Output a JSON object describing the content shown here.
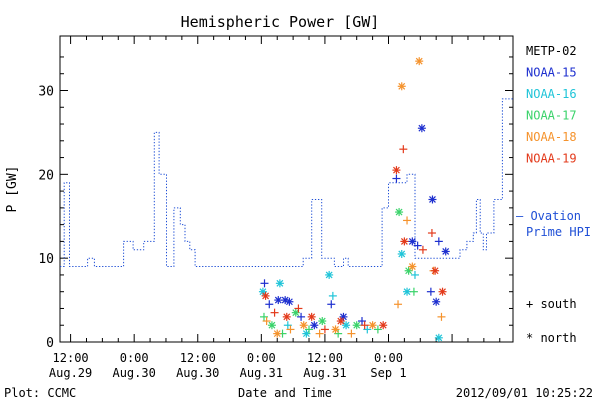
{
  "chart_data": {
    "type": "line",
    "title": "Hemispheric Power [GW]",
    "xlabel": "Date and Time",
    "ylabel": "P [GW]",
    "x_unit": "hours since 2012-08-29 00:00 UT",
    "xlim": [
      10,
      95.5
    ],
    "ylim": [
      0,
      36.5
    ],
    "yticks": [
      0,
      10,
      20,
      30
    ],
    "xticks": [
      {
        "t": 12,
        "line1": "12:00",
        "line2": "Aug.29"
      },
      {
        "t": 24,
        "line1": "0:00",
        "line2": "Aug.30"
      },
      {
        "t": 36,
        "line1": "12:00",
        "line2": "Aug.30"
      },
      {
        "t": 48,
        "line1": "0:00",
        "line2": "Aug.31"
      },
      {
        "t": 60,
        "line1": "12:00",
        "line2": "Aug.31"
      },
      {
        "t": 72,
        "line1": "0:00",
        "line2": "Sep 1"
      }
    ],
    "footer_left": "Plot: CCMC",
    "footer_right": "2012/09/01 10:25:22",
    "ovation": {
      "name_line1": "— Ovation",
      "name_line2": "Prime HPI",
      "color": "#1f4fd6",
      "x": [
        10,
        10.8,
        10.8,
        11.8,
        11.8,
        15.2,
        15.2,
        16.5,
        16.5,
        22,
        22,
        23.8,
        23.8,
        25.8,
        25.8,
        27.8,
        27.8,
        28.7,
        28.7,
        30.1,
        30.1,
        31.5,
        31.5,
        32.7,
        32.7,
        33.6,
        33.6,
        34.5,
        34.5,
        35.5,
        35.5,
        36.9,
        36.9,
        38.1,
        38.1,
        55.9,
        55.9,
        57.5,
        57.5,
        59.4,
        59.4,
        61.8,
        61.8,
        63.5,
        63.5,
        64.4,
        64.4,
        70.8,
        70.8,
        72,
        72,
        75.5,
        75.5,
        77,
        77,
        85.5,
        85.5,
        86.8,
        86.8,
        88,
        88,
        88.6,
        88.6,
        89.3,
        89.3,
        89.9,
        89.9,
        90.5,
        90.5,
        91.9,
        91.9,
        93.5,
        93.5,
        94.8,
        94.8,
        95.5
      ],
      "y": [
        9,
        9,
        19,
        19,
        9,
        9,
        10,
        10,
        9,
        9,
        12,
        12,
        11,
        11,
        12,
        12,
        25,
        25,
        20,
        20,
        9,
        9,
        16,
        16,
        14,
        14,
        12,
        12,
        11,
        11,
        9,
        9,
        9,
        9,
        9,
        9,
        10,
        10,
        17,
        17,
        10,
        10,
        9,
        9,
        10,
        10,
        9,
        9,
        16,
        16,
        19,
        19,
        20,
        20,
        10,
        10,
        11,
        11,
        12,
        12,
        13,
        13,
        17,
        17,
        13,
        13,
        11,
        11,
        13,
        13,
        17,
        17,
        29,
        29,
        29,
        29
      ]
    },
    "satellites": [
      {
        "name": "METP-02",
        "color": "#000000"
      },
      {
        "name": "NOAA-15",
        "color": "#1d2fcf"
      },
      {
        "name": "NOAA-16",
        "color": "#1fc4d8"
      },
      {
        "name": "NOAA-17",
        "color": "#3ad36a"
      },
      {
        "name": "NOAA-18",
        "color": "#f5932d"
      },
      {
        "name": "NOAA-19",
        "color": "#e33a1b"
      }
    ],
    "symbol_legend": {
      "south_label": "+ south",
      "north_label": "* north"
    },
    "points": [
      {
        "s": "NOAA-15",
        "t": 48.6,
        "p": 7,
        "h": "S"
      },
      {
        "s": "NOAA-15",
        "t": 49.5,
        "p": 4.5,
        "h": "S"
      },
      {
        "s": "NOAA-15",
        "t": 51.2,
        "p": 5,
        "h": "N"
      },
      {
        "s": "NOAA-15",
        "t": 52.5,
        "p": 5,
        "h": "N"
      },
      {
        "s": "NOAA-15",
        "t": 53.3,
        "p": 4.8,
        "h": "N"
      },
      {
        "s": "NOAA-15",
        "t": 55.5,
        "p": 3,
        "h": "S"
      },
      {
        "s": "NOAA-15",
        "t": 58,
        "p": 2,
        "h": "N"
      },
      {
        "s": "NOAA-15",
        "t": 61.2,
        "p": 4.5,
        "h": "S"
      },
      {
        "s": "NOAA-15",
        "t": 63.5,
        "p": 3,
        "h": "N"
      },
      {
        "s": "NOAA-15",
        "t": 67,
        "p": 2.5,
        "h": "S"
      },
      {
        "s": "NOAA-15",
        "t": 76.5,
        "p": 12,
        "h": "N"
      },
      {
        "s": "NOAA-15",
        "t": 77.5,
        "p": 11.5,
        "h": "S"
      },
      {
        "s": "NOAA-15",
        "t": 78.3,
        "p": 25.5,
        "h": "N"
      },
      {
        "s": "NOAA-15",
        "t": 80.3,
        "p": 17,
        "h": "N"
      },
      {
        "s": "NOAA-15",
        "t": 80,
        "p": 6,
        "h": "S"
      },
      {
        "s": "NOAA-15",
        "t": 81,
        "p": 4.8,
        "h": "N"
      },
      {
        "s": "NOAA-15",
        "t": 81.5,
        "p": 12,
        "h": "S"
      },
      {
        "s": "NOAA-15",
        "t": 82.8,
        "p": 10.8,
        "h": "N"
      },
      {
        "s": "NOAA-15",
        "t": 73.5,
        "p": 19.5,
        "h": "S"
      },
      {
        "s": "NOAA-16",
        "t": 48.3,
        "p": 6,
        "h": "N"
      },
      {
        "s": "NOAA-16",
        "t": 51.5,
        "p": 7,
        "h": "N"
      },
      {
        "s": "NOAA-16",
        "t": 53,
        "p": 2,
        "h": "S"
      },
      {
        "s": "NOAA-16",
        "t": 56.5,
        "p": 1,
        "h": "N"
      },
      {
        "s": "NOAA-16",
        "t": 60.8,
        "p": 8,
        "h": "N"
      },
      {
        "s": "NOAA-16",
        "t": 61.5,
        "p": 5.5,
        "h": "S"
      },
      {
        "s": "NOAA-16",
        "t": 64,
        "p": 2,
        "h": "N"
      },
      {
        "s": "NOAA-16",
        "t": 68,
        "p": 1.5,
        "h": "S"
      },
      {
        "s": "NOAA-16",
        "t": 74.5,
        "p": 10.5,
        "h": "N"
      },
      {
        "s": "NOAA-16",
        "t": 75.5,
        "p": 6,
        "h": "N"
      },
      {
        "s": "NOAA-16",
        "t": 77,
        "p": 8,
        "h": "S"
      },
      {
        "s": "NOAA-16",
        "t": 81.5,
        "p": 0.5,
        "h": "N"
      },
      {
        "s": "NOAA-17",
        "t": 48.5,
        "p": 3,
        "h": "S"
      },
      {
        "s": "NOAA-17",
        "t": 50,
        "p": 2,
        "h": "N"
      },
      {
        "s": "NOAA-17",
        "t": 52,
        "p": 1,
        "h": "S"
      },
      {
        "s": "NOAA-17",
        "t": 54.5,
        "p": 3.5,
        "h": "N"
      },
      {
        "s": "NOAA-17",
        "t": 57,
        "p": 1.5,
        "h": "S"
      },
      {
        "s": "NOAA-17",
        "t": 59.5,
        "p": 2.5,
        "h": "N"
      },
      {
        "s": "NOAA-17",
        "t": 62.5,
        "p": 1,
        "h": "S"
      },
      {
        "s": "NOAA-17",
        "t": 66,
        "p": 2,
        "h": "N"
      },
      {
        "s": "NOAA-17",
        "t": 70,
        "p": 1.5,
        "h": "S"
      },
      {
        "s": "NOAA-17",
        "t": 74,
        "p": 15.5,
        "h": "N"
      },
      {
        "s": "NOAA-17",
        "t": 75.8,
        "p": 8.5,
        "h": "N"
      },
      {
        "s": "NOAA-17",
        "t": 76.8,
        "p": 6,
        "h": "S"
      },
      {
        "s": "NOAA-18",
        "t": 49,
        "p": 2.5,
        "h": "S"
      },
      {
        "s": "NOAA-18",
        "t": 51,
        "p": 1,
        "h": "N"
      },
      {
        "s": "NOAA-18",
        "t": 53.5,
        "p": 1.5,
        "h": "S"
      },
      {
        "s": "NOAA-18",
        "t": 56,
        "p": 2,
        "h": "N"
      },
      {
        "s": "NOAA-18",
        "t": 59,
        "p": 1,
        "h": "S"
      },
      {
        "s": "NOAA-18",
        "t": 62,
        "p": 1.5,
        "h": "N"
      },
      {
        "s": "NOAA-18",
        "t": 65,
        "p": 1,
        "h": "S"
      },
      {
        "s": "NOAA-18",
        "t": 69,
        "p": 2,
        "h": "N"
      },
      {
        "s": "NOAA-18",
        "t": 73.8,
        "p": 4.5,
        "h": "S"
      },
      {
        "s": "NOAA-18",
        "t": 74.5,
        "p": 30.5,
        "h": "N"
      },
      {
        "s": "NOAA-18",
        "t": 75.5,
        "p": 14.5,
        "h": "S"
      },
      {
        "s": "NOAA-18",
        "t": 76.5,
        "p": 9,
        "h": "N"
      },
      {
        "s": "NOAA-18",
        "t": 77.8,
        "p": 33.5,
        "h": "N"
      },
      {
        "s": "NOAA-18",
        "t": 80.5,
        "p": 8.5,
        "h": "S"
      },
      {
        "s": "NOAA-18",
        "t": 82,
        "p": 3,
        "h": "S"
      },
      {
        "s": "NOAA-19",
        "t": 48.8,
        "p": 5.5,
        "h": "N"
      },
      {
        "s": "NOAA-19",
        "t": 50.5,
        "p": 3.5,
        "h": "S"
      },
      {
        "s": "NOAA-19",
        "t": 52.8,
        "p": 3,
        "h": "N"
      },
      {
        "s": "NOAA-19",
        "t": 55,
        "p": 4,
        "h": "S"
      },
      {
        "s": "NOAA-19",
        "t": 57.5,
        "p": 3,
        "h": "N"
      },
      {
        "s": "NOAA-19",
        "t": 60,
        "p": 1.5,
        "h": "S"
      },
      {
        "s": "NOAA-19",
        "t": 63,
        "p": 2.5,
        "h": "N"
      },
      {
        "s": "NOAA-19",
        "t": 67.5,
        "p": 2,
        "h": "S"
      },
      {
        "s": "NOAA-19",
        "t": 71,
        "p": 2,
        "h": "N"
      },
      {
        "s": "NOAA-19",
        "t": 73.5,
        "p": 20.5,
        "h": "N"
      },
      {
        "s": "NOAA-19",
        "t": 74.8,
        "p": 23,
        "h": "S"
      },
      {
        "s": "NOAA-19",
        "t": 75,
        "p": 12,
        "h": "N"
      },
      {
        "s": "NOAA-19",
        "t": 78.5,
        "p": 11,
        "h": "S"
      },
      {
        "s": "NOAA-19",
        "t": 80.2,
        "p": 13,
        "h": "S"
      },
      {
        "s": "NOAA-19",
        "t": 80.8,
        "p": 8.5,
        "h": "N"
      },
      {
        "s": "NOAA-19",
        "t": 82.2,
        "p": 6,
        "h": "N"
      }
    ]
  }
}
